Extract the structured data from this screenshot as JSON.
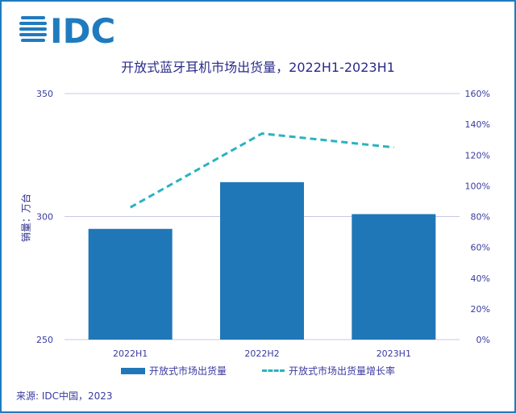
{
  "logo_text": "IDC",
  "source": "来源: IDC中国，2023",
  "chart_data": {
    "type": "bar+line",
    "title": "开放式蓝牙耳机市场出货量，2022H1-2023H1",
    "categories": [
      "2022H1",
      "2022H2",
      "2023H1"
    ],
    "series": [
      {
        "name": "开放式市场出货量",
        "type": "bar",
        "axis": "left",
        "values": [
          295,
          314,
          301
        ],
        "color": "#2077b8"
      },
      {
        "name": "开放式市场出货量增长率",
        "type": "line",
        "axis": "right",
        "values": [
          86,
          134,
          125
        ],
        "unit": "%",
        "color": "#2ab3bf"
      }
    ],
    "ylabel": "销量：万台",
    "ylim": [
      250,
      350
    ],
    "yticks": [
      "250",
      "300",
      "350"
    ],
    "ylim_right": [
      0,
      160
    ],
    "yticks_right": [
      "0%",
      "20%",
      "40%",
      "60%",
      "80%",
      "100%",
      "120%",
      "140%",
      "160%"
    ],
    "grid": true,
    "legend_position": "bottom"
  }
}
